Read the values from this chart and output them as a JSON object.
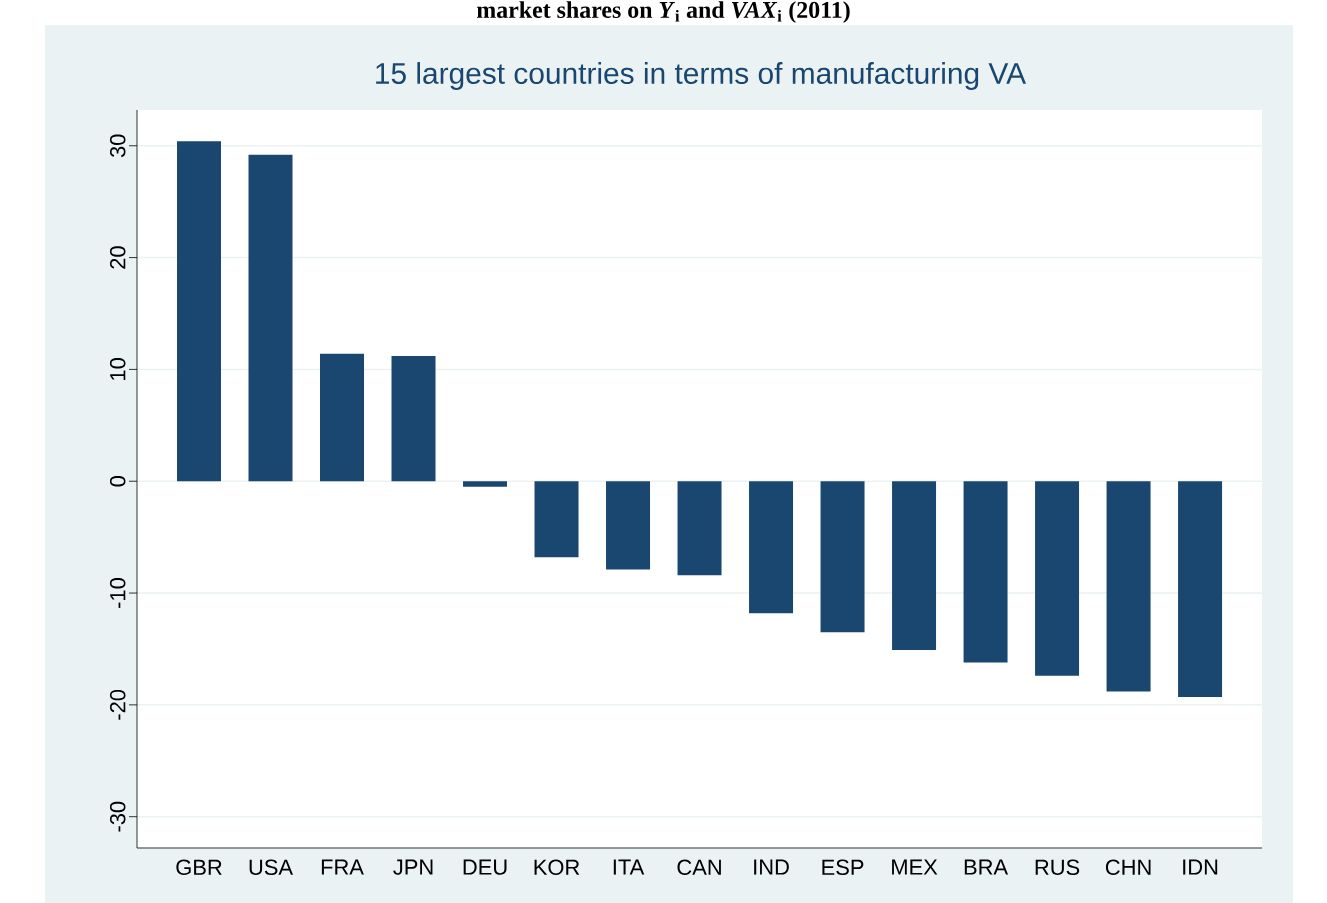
{
  "chart_data": {
    "type": "bar",
    "title": "market shares on *Y*$_{i}$ and *VAX*$_{i}$ (2011)",
    "subtitle": "15 largest countries in terms of manufacturing VA",
    "categories": [
      "GBR",
      "USA",
      "FRA",
      "JPN",
      "DEU",
      "KOR",
      "ITA",
      "CAN",
      "IND",
      "ESP",
      "MEX",
      "BRA",
      "RUS",
      "CHN",
      "IDN"
    ],
    "values": [
      30.4,
      29.2,
      11.4,
      11.2,
      -0.5,
      -6.8,
      -7.9,
      -8.4,
      -11.8,
      -13.5,
      -15.1,
      -16.2,
      -17.4,
      -18.8,
      -19.3
    ],
    "color": "#1a476f",
    "ylim": [
      -32.8,
      33.2
    ],
    "yticks": [
      -30,
      -20,
      -10,
      0,
      10,
      20,
      30
    ],
    "grid": "y"
  }
}
